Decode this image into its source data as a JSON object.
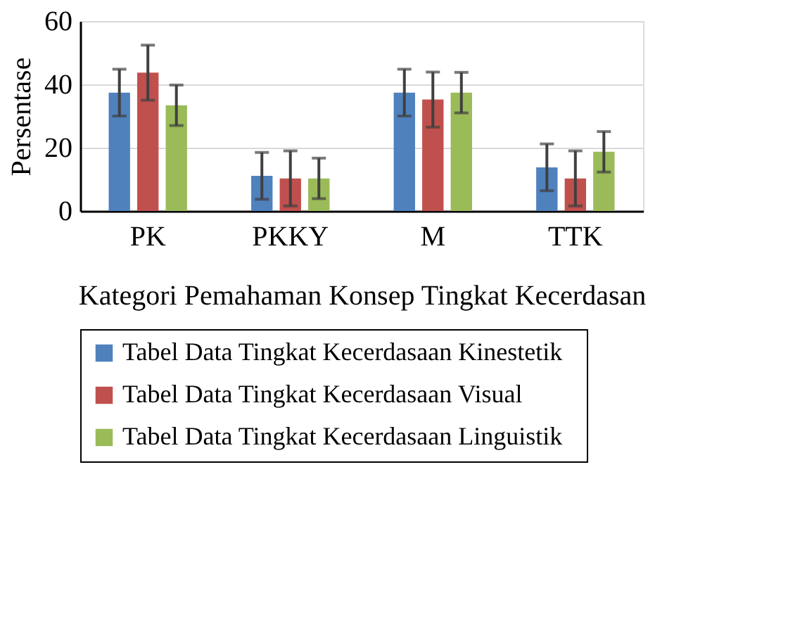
{
  "chart_data": {
    "type": "bar",
    "xlabel": "Kategori Pemahaman Konsep Tingkat Kecerdasan",
    "ylabel": "Persentase",
    "categories": [
      "PK",
      "PKKY",
      "M",
      "TTK"
    ],
    "series": [
      {
        "name": "Tabel Data Tingkat  Kecerdasaan  Kinestetik",
        "color": "#4f81bd",
        "values": [
          37.4,
          11.1,
          37.4,
          13.8
        ],
        "errors": [
          7.4,
          7.4,
          7.4,
          7.4
        ]
      },
      {
        "name": "Tabel Data Tingkat  Kecerdasaan  Visual",
        "color": "#c0504d",
        "values": [
          43.7,
          10.3,
          35.2,
          10.3
        ],
        "errors": [
          8.7,
          8.7,
          8.7,
          8.7
        ]
      },
      {
        "name": "Tabel Data Tingkat  Kecerdasaan  Linguistik",
        "color": "#9bbb59",
        "values": [
          33.4,
          10.3,
          37.4,
          18.7
        ],
        "errors": [
          6.4,
          6.4,
          6.4,
          6.4
        ]
      }
    ],
    "ylim": [
      0,
      60
    ],
    "yticks": [
      0,
      20,
      40,
      60
    ],
    "grid": "y",
    "legend": "bottom"
  }
}
